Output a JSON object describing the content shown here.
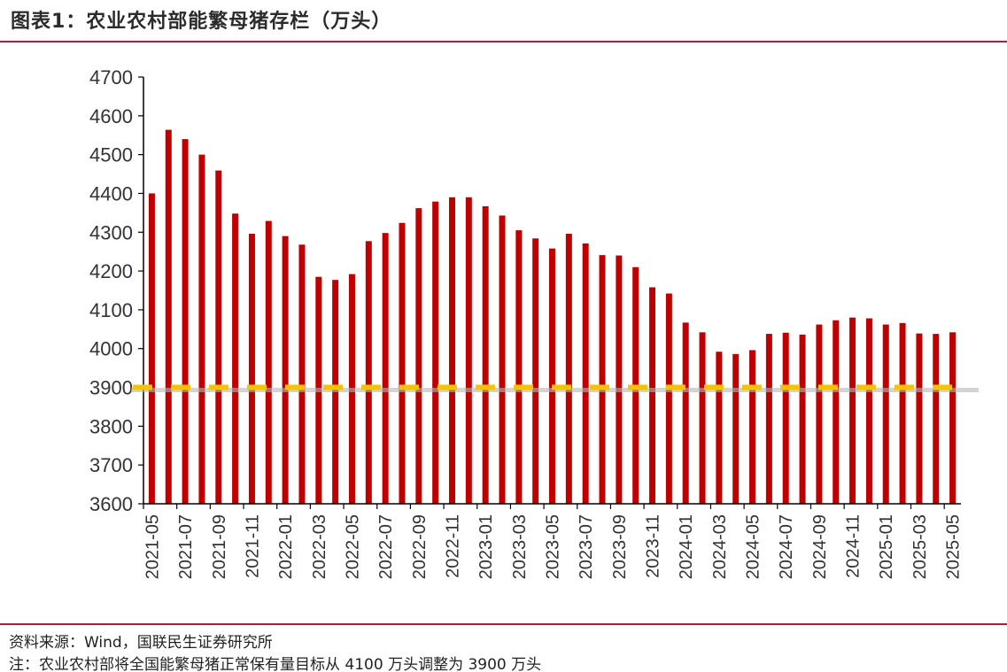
{
  "header": {
    "title": "图表1：农业农村部能繁母猪存栏（万头）"
  },
  "footer": {
    "source": "资料来源：Wind，国联民生证券研究所",
    "note": "注：农业农村部将全国能繁母猪正常保有量目标从 4100 万头调整为 3900 万头"
  },
  "colors": {
    "bar": "#c00000",
    "target_line": "#f5c400",
    "rule": "#a31f3a"
  },
  "chart_data": {
    "type": "bar",
    "title": "图表1：农业农村部能繁母猪存栏（万头）",
    "xlabel": "",
    "ylabel": "",
    "ylim": [
      3600,
      4700
    ],
    "yticks": [
      3600,
      3700,
      3800,
      3900,
      4000,
      4100,
      4200,
      4300,
      4400,
      4500,
      4600,
      4700
    ],
    "grid": false,
    "categories": [
      "2021-05",
      "2021-06",
      "2021-07",
      "2021-08",
      "2021-09",
      "2021-10",
      "2021-11",
      "2021-12",
      "2022-01",
      "2022-02",
      "2022-03",
      "2022-04",
      "2022-05",
      "2022-06",
      "2022-07",
      "2022-08",
      "2022-09",
      "2022-10",
      "2022-11",
      "2022-12",
      "2023-01",
      "2023-02",
      "2023-03",
      "2023-04",
      "2023-05",
      "2023-06",
      "2023-07",
      "2023-08",
      "2023-09",
      "2023-10",
      "2023-11",
      "2023-12",
      "2024-01",
      "2024-02",
      "2024-03",
      "2024-04",
      "2024-05",
      "2024-06",
      "2024-07",
      "2024-08",
      "2024-09",
      "2024-10",
      "2024-11",
      "2024-12",
      "2025-01",
      "2025-02",
      "2025-03",
      "2025-04",
      "2025-05"
    ],
    "xtick_labels": [
      "2021-05",
      "2021-07",
      "2021-09",
      "2021-11",
      "2022-01",
      "2022-03",
      "2022-05",
      "2022-07",
      "2022-09",
      "2022-11",
      "2023-01",
      "2023-03",
      "2023-05",
      "2023-07",
      "2023-09",
      "2023-11",
      "2024-01",
      "2024-03",
      "2024-05",
      "2024-07",
      "2024-09",
      "2024-11",
      "2025-01",
      "2025-03",
      "2025-05"
    ],
    "values": [
      4400,
      4564,
      4540,
      4500,
      4459,
      4348,
      4296,
      4329,
      4290,
      4268,
      4185,
      4177,
      4192,
      4277,
      4298,
      4324,
      4362,
      4379,
      4390,
      4390,
      4367,
      4343,
      4305,
      4284,
      4258,
      4296,
      4271,
      4241,
      4240,
      4210,
      4158,
      4142,
      4067,
      4042,
      3992,
      3986,
      3996,
      4038,
      4041,
      4036,
      4062,
      4073,
      4080,
      4078,
      4062,
      4066,
      4039,
      4038,
      4042
    ],
    "reference_line": {
      "value": 3900,
      "style": "dashed"
    }
  }
}
